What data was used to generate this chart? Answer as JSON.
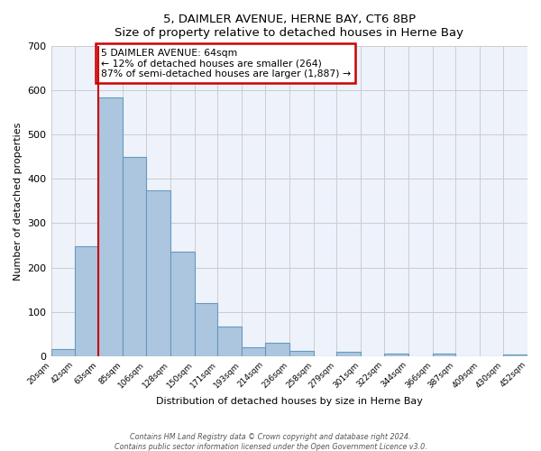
{
  "title": "5, DAIMLER AVENUE, HERNE BAY, CT6 8BP",
  "subtitle": "Size of property relative to detached houses in Herne Bay",
  "xlabel": "Distribution of detached houses by size in Herne Bay",
  "ylabel": "Number of detached properties",
  "bar_values": [
    15,
    248,
    585,
    450,
    375,
    235,
    120,
    67,
    20,
    30,
    12,
    0,
    9,
    0,
    6,
    0,
    5,
    0,
    0,
    4
  ],
  "bin_edges": [
    20,
    42,
    63,
    85,
    106,
    128,
    150,
    171,
    193,
    214,
    236,
    258,
    279,
    301,
    322,
    344,
    366,
    387,
    409,
    430,
    452
  ],
  "bin_labels": [
    "20sqm",
    "42sqm",
    "63sqm",
    "85sqm",
    "106sqm",
    "128sqm",
    "150sqm",
    "171sqm",
    "193sqm",
    "214sqm",
    "236sqm",
    "258sqm",
    "279sqm",
    "301sqm",
    "322sqm",
    "344sqm",
    "366sqm",
    "387sqm",
    "409sqm",
    "430sqm",
    "452sqm"
  ],
  "bar_color": "#adc6e0",
  "bar_edge_color": "#6699bb",
  "grid_color": "#cccccc",
  "bg_color": "#eef2fb",
  "property_line_x": 63,
  "property_line_color": "#cc0000",
  "annotation_text": "5 DAIMLER AVENUE: 64sqm\n← 12% of detached houses are smaller (264)\n87% of semi-detached houses are larger (1,887) →",
  "annotation_box_edgecolor": "#cc0000",
  "ylim": [
    0,
    700
  ],
  "yticks": [
    0,
    100,
    200,
    300,
    400,
    500,
    600,
    700
  ],
  "footer1": "Contains HM Land Registry data © Crown copyright and database right 2024.",
  "footer2": "Contains public sector information licensed under the Open Government Licence v3.0."
}
